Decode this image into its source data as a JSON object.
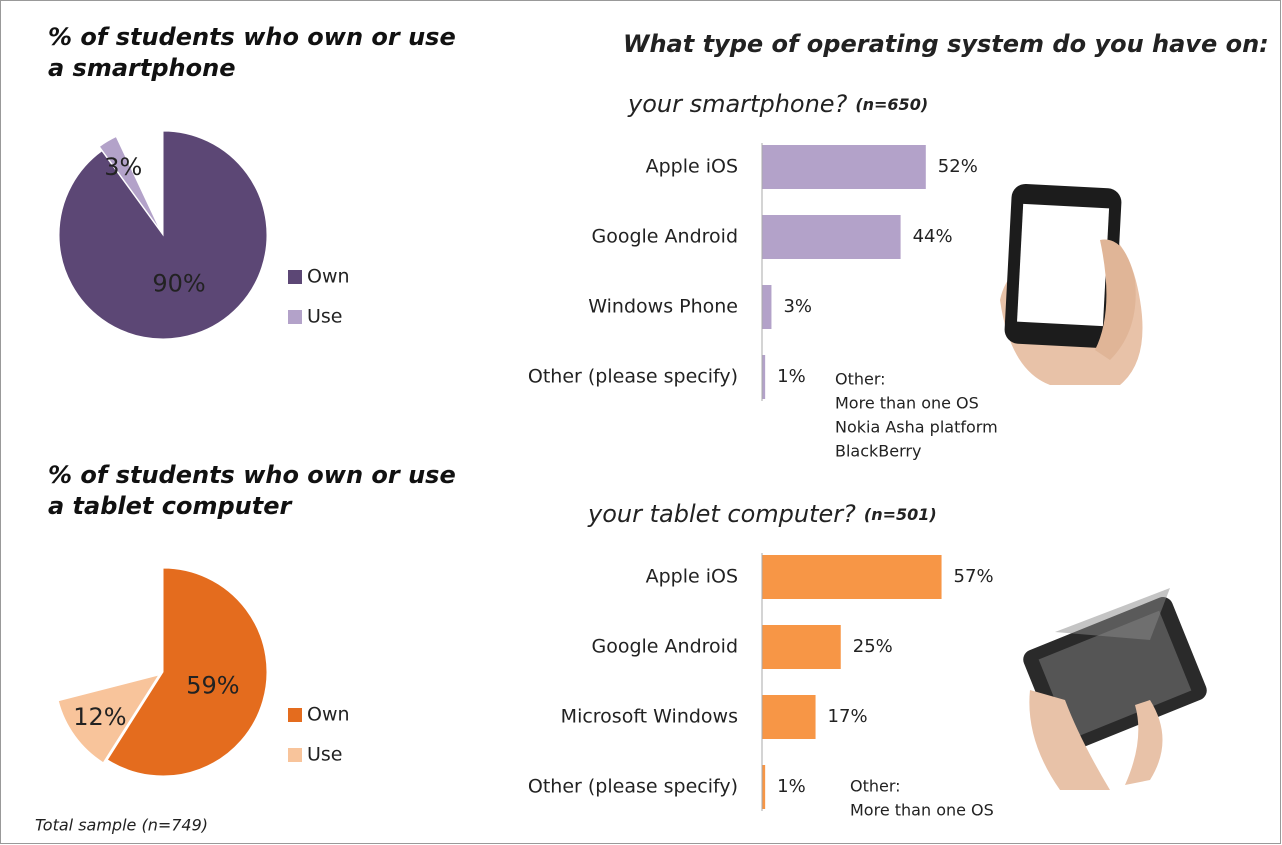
{
  "heading": "What type of operating system do you have on:",
  "footnote": "Total sample (n=749)",
  "chart_data": [
    {
      "type": "pie",
      "title": "% of students who own or use a smartphone",
      "categories": [
        "Own",
        "Use"
      ],
      "values": [
        90,
        3
      ],
      "value_labels": [
        "90%",
        "3%"
      ],
      "colors": [
        "#5c4775",
        "#b3a2c9"
      ]
    },
    {
      "type": "pie",
      "title": "% of students who own or use a tablet computer",
      "categories": [
        "Own",
        "Use"
      ],
      "values": [
        59,
        12
      ],
      "value_labels": [
        "59%",
        "12%"
      ],
      "colors": [
        "#e46c1e",
        "#f8c49b"
      ]
    },
    {
      "type": "bar",
      "title": "your smartphone?",
      "subtitle": "(n=650)",
      "categories": [
        "Apple iOS",
        "Google Android",
        "Windows Phone",
        "Other (please specify)"
      ],
      "values": [
        52,
        44,
        3,
        1
      ],
      "value_labels": [
        "52%",
        "44%",
        "3%",
        "1%"
      ],
      "color": "#b3a2c9",
      "note": [
        "Other:",
        "More than one OS",
        "Nokia Asha platform",
        "BlackBerry"
      ]
    },
    {
      "type": "bar",
      "title": "your tablet computer?",
      "subtitle": "(n=501)",
      "categories": [
        "Apple iOS",
        "Google Android",
        "Microsoft Windows",
        "Other (please specify)"
      ],
      "values": [
        57,
        25,
        17,
        1
      ],
      "value_labels": [
        "57%",
        "25%",
        "17%",
        "1%"
      ],
      "color": "#f79646",
      "note": [
        "Other:",
        "More than one OS"
      ]
    }
  ]
}
